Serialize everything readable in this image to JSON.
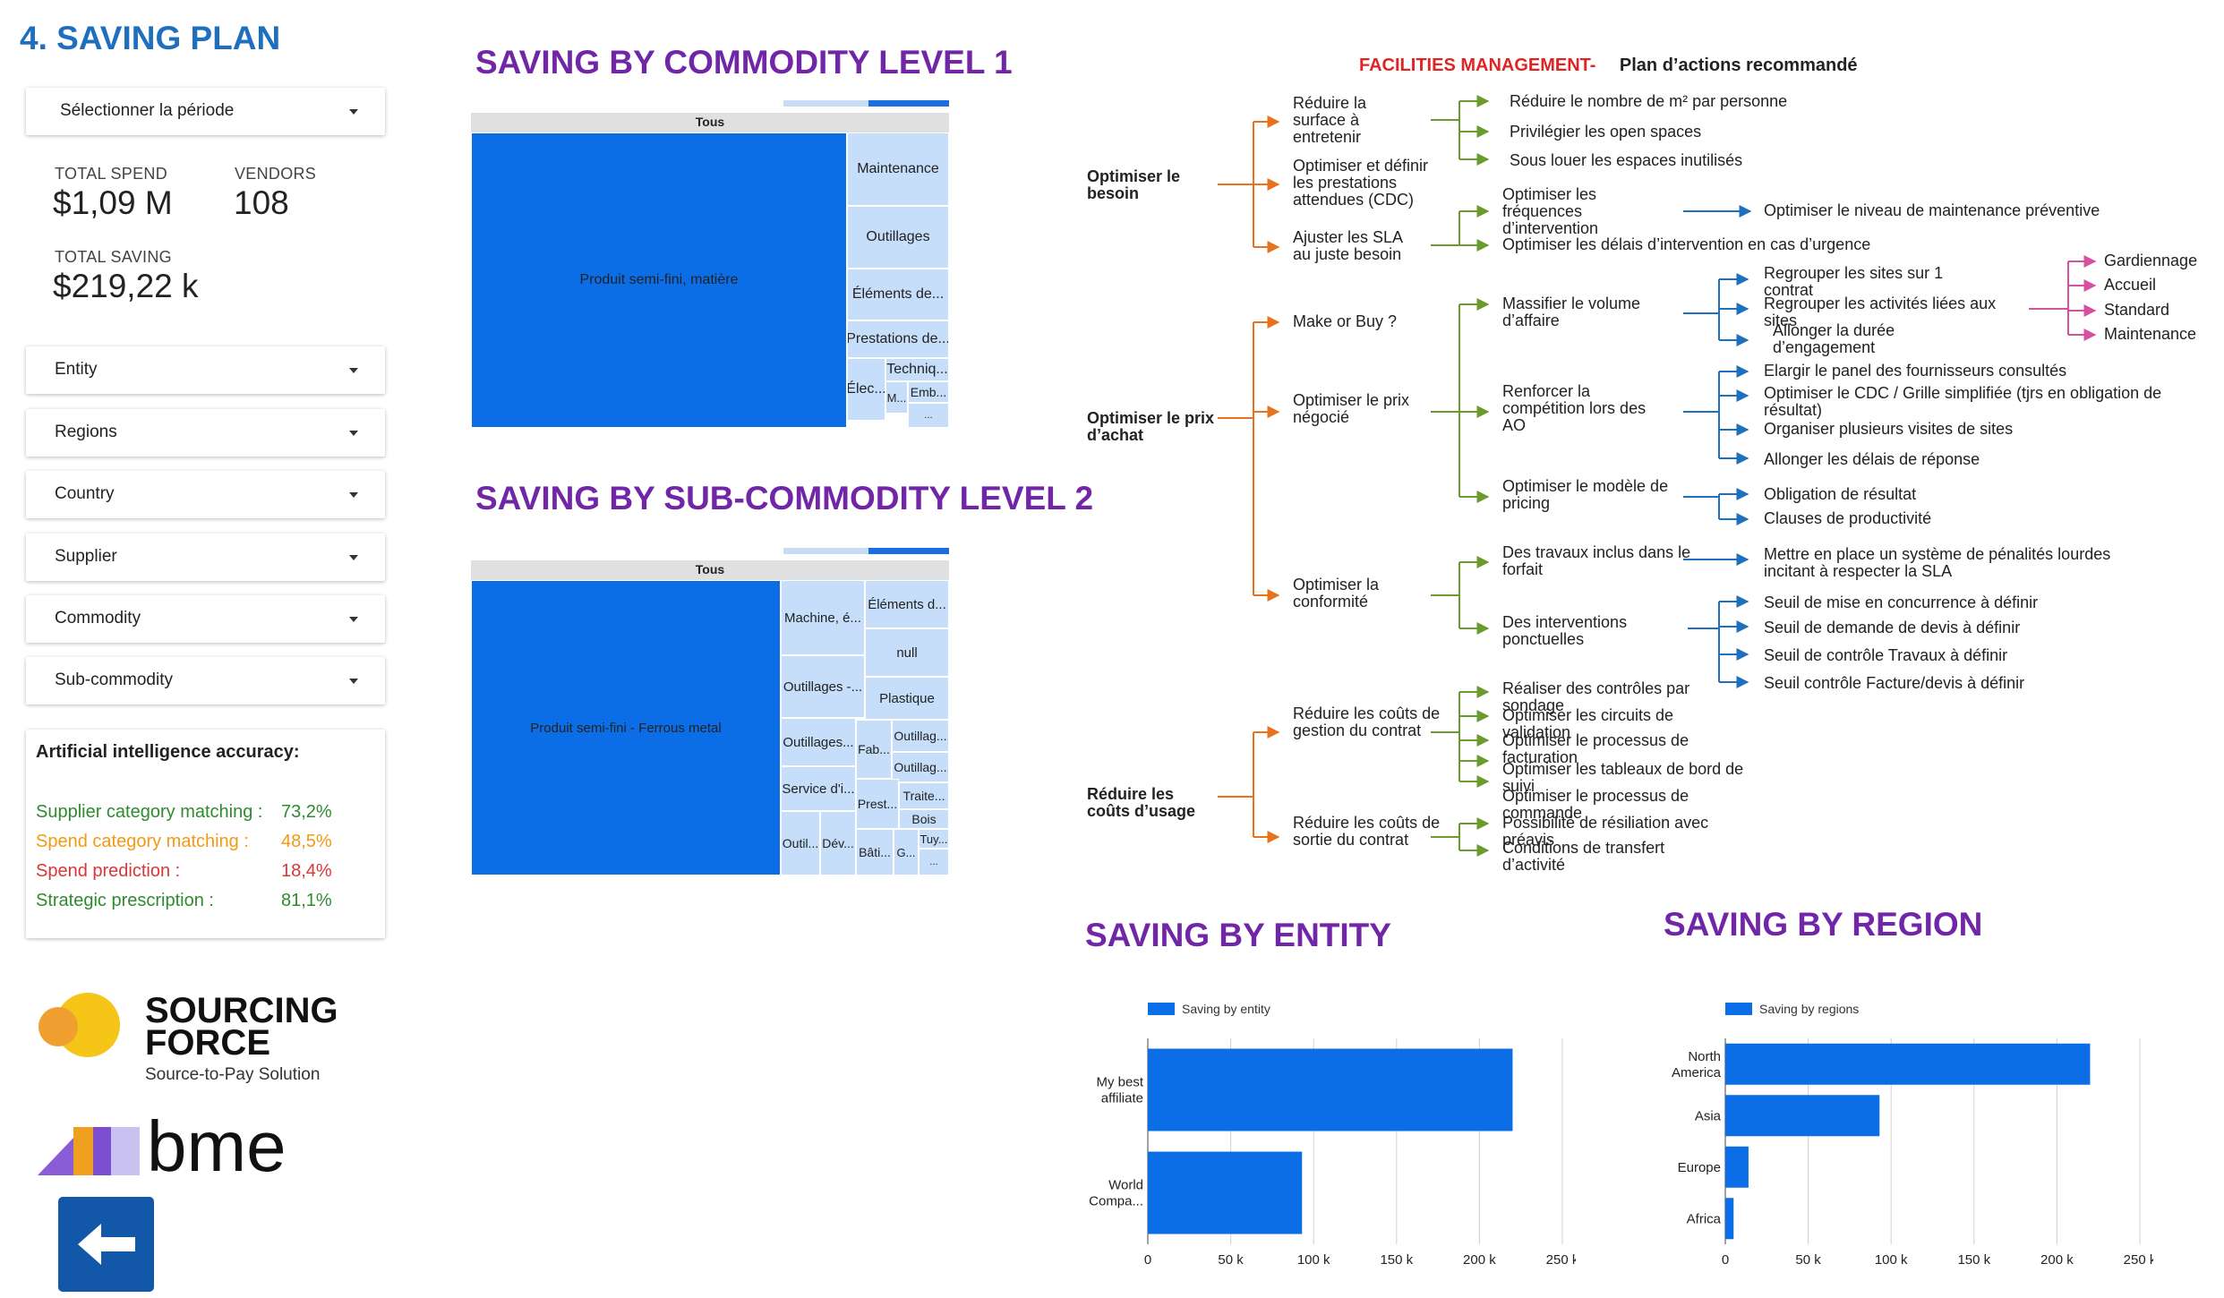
{
  "page_title": "4. SAVING PLAN",
  "period_selector": {
    "label": "Sélectionner la période"
  },
  "kpis": {
    "total_spend_label": "TOTAL SPEND",
    "total_spend_value": "$1,09 M",
    "vendors_label": "VENDORS",
    "vendors_value": "108",
    "total_saving_label": "TOTAL SAVING",
    "total_saving_value": "$219,22 k"
  },
  "filters": [
    "Entity",
    "Regions",
    "Country",
    "Supplier",
    "Commodity",
    "Sub-commodity"
  ],
  "ai_accuracy": {
    "title": "Artificial intelligence accuracy:",
    "lines": [
      {
        "label": "Supplier category matching :",
        "value": "73,2%",
        "color": "#2e8b2e"
      },
      {
        "label": "Spend category matching :",
        "value": "48,5%",
        "color": "#f29a12"
      },
      {
        "label": "Spend prediction :",
        "value": "18,4%",
        "color": "#d93636"
      },
      {
        "label": "Strategic prescription :",
        "value": "81,1%",
        "color": "#2e8b2e"
      }
    ]
  },
  "logos": {
    "sourcing_force_1": "SOURCING",
    "sourcing_force_2": "FORCE",
    "sourcing_force_tagline": "Source-to-Pay Solution",
    "bme": "bme"
  },
  "back_button": {
    "icon": "arrow-left-icon"
  },
  "treemap1": {
    "title": "SAVING BY COMMODITY LEVEL 1",
    "header": "Tous",
    "cells": [
      "Produit semi-fini, matière",
      "Maintenance",
      "Outillages",
      "Éléments de...",
      "Prestations de...",
      "Techniq...",
      "Élec...",
      "Emb...",
      "M...",
      "..."
    ]
  },
  "treemap2": {
    "title": "SAVING BY SUB-COMMODITY LEVEL 2",
    "header": "Tous",
    "cells": [
      "Produit semi-fini - Ferrous metal",
      "Machine, é...",
      "Éléments d...",
      "null",
      "Outillages -...",
      "Plastique",
      "Outillages...",
      "Outillag...",
      "Fab...",
      "Outillag...",
      "Service d'i...",
      "Traite...",
      "Prest...",
      "Bois",
      "Outil...",
      "Dév...",
      "Tuy...",
      "Bâti...",
      "G...",
      "..."
    ]
  },
  "facilities": {
    "title_red": "FACILITIES MANAGEMENT-",
    "title_black": "Plan d’actions recommandé",
    "level1": [
      "Optimiser le besoin",
      "Optimiser le prix d’achat",
      "Réduire les coûts d’usage"
    ],
    "texts": {
      "reduire_surface": "Réduire la surface à entretenir",
      "optimiser_prestations": "Optimiser et définir les prestations attendues (CDC)",
      "ajuster_sla": "Ajuster les SLA au juste besoin",
      "reduire_m2": "Réduire le nombre de m² par personne",
      "open_spaces": "Privilégier les open spaces",
      "sous_louer": "Sous louer les espaces inutilisés",
      "optimiser_frequences": "Optimiser les fréquences d’intervention",
      "optimiser_delais": "Optimiser les délais d’intervention en cas d’urgence",
      "niveau_maintenance": "Optimiser le niveau de maintenance préventive",
      "make_or_buy": "Make or Buy ?",
      "prix_negocie": "Optimiser le prix négocié",
      "conformite": "Optimiser la conformité",
      "massifier": "Massifier le volume d’affaire",
      "renforcer": "Renforcer la compétition lors des AO",
      "modele_pricing": "Optimiser le modèle de pricing",
      "regrouper_sites": "Regrouper les sites sur 1 contrat",
      "regrouper_activites": "Regrouper les activités liées aux sites",
      "allonger_duree": "Allonger la durée d’engagement",
      "gardiennage": "Gardiennage",
      "accueil": "Accueil",
      "standard": "Standard",
      "maintenance": "Maintenance",
      "elargir_panel": "Elargir le panel des fournisseurs consultés",
      "optimiser_cdc": "Optimiser le CDC / Grille simplifiée (tjrs en obligation de résultat)",
      "visites": "Organiser plusieurs visites de sites",
      "allonger_delais": "Allonger les délais de réponse",
      "obligation": "Obligation de résultat",
      "clauses": "Clauses de productivité",
      "travaux_forfait": "Des travaux inclus dans le forfait",
      "penalites": "Mettre en place un système de pénalités lourdes incitant à respecter la SLA",
      "interventions_ponct": "Des interventions ponctuelles",
      "seuil_concurrence": "Seuil de mise en concurrence à définir",
      "seuil_devis": "Seuil de demande de devis à définir",
      "seuil_travaux": "Seuil de contrôle Travaux à définir",
      "seuil_facture": "Seuil contrôle Facture/devis à définir",
      "couts_gestion": "Réduire les coûts de gestion du contrat",
      "couts_sortie": "Réduire les coûts de sortie du contrat",
      "controles_sondage": "Réaliser des contrôles par sondage",
      "circuits_validation": "Optimiser les circuits de validation",
      "processus_facturation": "Optimiser le processus de facturation",
      "tableaux_bord": "Optimiser les tableaux de bord de suivi",
      "processus_commande": "Optimiser le processus de commande",
      "resiliation": "Possibilité de résiliation avec préavis",
      "transfert": "Conditions de transfert d’activité"
    }
  },
  "colors": {
    "accent": "#1f6fbf",
    "purple": "#7126a8",
    "bar": "#0c6ee6",
    "orange": "#e8731c",
    "green": "#6b9b2d",
    "blue": "#1f6fbf",
    "pink": "#d94fa0"
  },
  "chart_data": [
    {
      "type": "bar",
      "orientation": "horizontal",
      "title": "SAVING BY ENTITY",
      "legend": "Saving by entity",
      "legend_position": "top-left",
      "categories": [
        "My best affiliate",
        "World Compa..."
      ],
      "values": [
        220000,
        93000
      ],
      "xlim": [
        0,
        250000
      ],
      "xticks": [
        "0",
        "50 k",
        "100 k",
        "150 k",
        "200 k",
        "250 k"
      ],
      "grid": true
    },
    {
      "type": "bar",
      "orientation": "horizontal",
      "title": "SAVING BY REGION",
      "legend": "Saving by regions",
      "legend_position": "top-left",
      "categories": [
        "North America",
        "Asia",
        "Europe",
        "Africa"
      ],
      "values": [
        220000,
        93000,
        14000,
        5000
      ],
      "xlim": [
        0,
        250000
      ],
      "xticks": [
        "0",
        "50 k",
        "100 k",
        "150 k",
        "200 k",
        "250 k"
      ],
      "grid": true
    }
  ]
}
